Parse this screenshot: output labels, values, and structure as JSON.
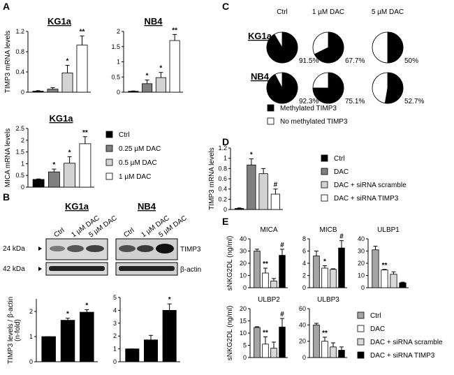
{
  "panel_labels": [
    "A",
    "B",
    "C",
    "D",
    "E"
  ],
  "legends": [
    {
      "items": [
        "Ctrl",
        "0.25 µM DAC",
        "0.5 µM DAC",
        "1 µM DAC"
      ],
      "colors": [
        "#000000",
        "#808080",
        "#d3d3d3",
        "#ffffff"
      ]
    },
    {
      "items": [
        "Methylated TIMP3",
        "No methylated TIMP3"
      ],
      "colors": [
        "#000000",
        "#ffffff"
      ]
    },
    {
      "items": [
        "Ctrl",
        "DAC",
        "DAC + siRNA scramble",
        "DAC + siRNA TIMP3"
      ],
      "colors": [
        "#000000",
        "#808080",
        "#d3d3d3",
        "#ffffff"
      ]
    },
    {
      "items": [
        "Ctrl",
        "DAC",
        "DAC + siRNA scramble",
        "DAC + siRNA TIMP3"
      ],
      "colors": [
        "#a6a6a6",
        "#ffffff",
        "#d9d9d9",
        "#000000"
      ]
    }
  ],
  "blot": {
    "titles": [
      "KG1a",
      "NB4"
    ],
    "lanes": [
      "Ctrl",
      "1 µM DAC",
      "5 µM DAC"
    ],
    "markers": [
      "24 kDa",
      "42 kDa"
    ],
    "proteins": [
      "TIMP3",
      "β-actin"
    ]
  },
  "chart_data": [
    {
      "type": "bar",
      "title": "KG1a",
      "title_underline": true,
      "ylabel": "TIMP3 mRNA levels",
      "values": [
        0.02,
        0.06,
        0.38,
        0.93
      ],
      "errors": [
        0.01,
        0.03,
        0.15,
        0.18
      ],
      "annotations": [
        null,
        null,
        "*",
        "**"
      ],
      "colors": [
        "#000000",
        "#808080",
        "#d3d3d3",
        "#ffffff"
      ],
      "ylim": [
        0,
        1.2
      ],
      "yticks": [
        0,
        0.4,
        0.8,
        1.2
      ]
    },
    {
      "type": "bar",
      "title": "NB4",
      "title_underline": true,
      "values": [
        0.03,
        0.28,
        0.48,
        1.7
      ],
      "errors": [
        0.01,
        0.12,
        0.17,
        0.2
      ],
      "annotations": [
        null,
        "*",
        "*",
        "**"
      ],
      "colors": [
        "#000000",
        "#808080",
        "#d3d3d3",
        "#ffffff"
      ],
      "ylim": [
        0,
        2
      ],
      "yticks": [
        0,
        0.5,
        1,
        1.5,
        2
      ]
    },
    {
      "type": "bar",
      "title": "KG1a",
      "title_underline": true,
      "ylabel": "MICA  mRNA levels",
      "values": [
        0.33,
        0.65,
        1.02,
        1.85
      ],
      "errors": [
        0.02,
        0.12,
        0.28,
        0.3
      ],
      "annotations": [
        null,
        "*",
        "*",
        "**"
      ],
      "colors": [
        "#000000",
        "#808080",
        "#d3d3d3",
        "#ffffff"
      ],
      "ylim": [
        0,
        2.5
      ],
      "yticks": [
        0,
        0.5,
        1,
        1.5,
        2,
        2.5
      ]
    },
    {
      "type": "bar",
      "ylabel": [
        "TIMP3 levels / β-actin",
        "(n-fold)"
      ],
      "values": [
        1,
        1.65,
        1.97
      ],
      "errors": [
        0,
        0.08,
        0.1
      ],
      "annotations": [
        null,
        "*",
        "*"
      ],
      "colors": [
        "#000000",
        "#000000",
        "#000000"
      ],
      "ylim": [
        0,
        2.5
      ],
      "yticks": [
        0,
        1,
        2
      ]
    },
    {
      "type": "bar",
      "values": [
        1,
        1.7,
        4
      ],
      "errors": [
        0,
        0.35,
        0.5
      ],
      "annotations": [
        null,
        null,
        "*"
      ],
      "colors": [
        "#000000",
        "#000000",
        "#000000"
      ],
      "ylim": [
        0,
        5
      ],
      "yticks": [
        0,
        1,
        2,
        3,
        4,
        5
      ]
    },
    {
      "type": "pie",
      "rows": [
        "KG1a",
        "NB4"
      ],
      "columns": [
        "Ctrl",
        "1 µM DAC",
        "5 µM DAC"
      ],
      "values": [
        [
          91.5,
          67.7,
          50
        ],
        [
          92.3,
          75.1,
          52.7
        ]
      ],
      "value_labels": [
        [
          "91.5%",
          "67.7%",
          "50%"
        ],
        [
          "92.3%",
          "75.1%",
          "52.7%"
        ]
      ],
      "color": "#000000"
    },
    {
      "type": "bar",
      "ylabel": "TIMP3 mRNA levels",
      "values": [
        0.02,
        0.87,
        0.7,
        0.3
      ],
      "errors": [
        0.01,
        0.12,
        0.1,
        0.1
      ],
      "annotations": [
        null,
        "*",
        null,
        "#"
      ],
      "colors": [
        "#000000",
        "#808080",
        "#d3d3d3",
        "#ffffff"
      ],
      "ylim": [
        0,
        1.2
      ],
      "yticks": [
        0,
        0.2,
        0.4,
        0.6,
        0.8,
        1,
        1.2
      ]
    },
    {
      "type": "bar",
      "title": "MICA",
      "ylabel": "sNKG2DL (ng/ml)",
      "values": [
        30,
        12,
        5.5,
        26.5
      ],
      "errors": [
        1.5,
        4,
        2,
        5
      ],
      "annotations": [
        null,
        "**",
        null,
        "#"
      ],
      "colors": [
        "#a6a6a6",
        "#ffffff",
        "#d9d9d9",
        "#000000"
      ],
      "ylim": [
        0,
        40
      ],
      "yticks": [
        0,
        10,
        20,
        30,
        40
      ]
    },
    {
      "type": "bar",
      "title": "MICB",
      "values": [
        5.2,
        3.2,
        3,
        6.5
      ],
      "errors": [
        0.8,
        0.4,
        0.1,
        1.2
      ],
      "annotations": [
        null,
        "*",
        null,
        "#"
      ],
      "colors": [
        "#a6a6a6",
        "#ffffff",
        "#d9d9d9",
        "#000000"
      ],
      "ylim": [
        0,
        8
      ],
      "yticks": [
        0,
        2,
        4,
        6,
        8
      ]
    },
    {
      "type": "bar",
      "title": "ULBP1",
      "values": [
        31,
        14.5,
        11,
        4
      ],
      "errors": [
        3,
        0.5,
        2,
        0.5
      ],
      "annotations": [
        null,
        "**",
        null,
        null
      ],
      "colors": [
        "#a6a6a6",
        "#ffffff",
        "#d9d9d9",
        "#000000"
      ],
      "ylim": [
        0,
        40
      ],
      "yticks": [
        0,
        10,
        20,
        30,
        40
      ]
    },
    {
      "type": "bar",
      "title": "ULBP2",
      "ylabel": "sNKG2DL (ng/ml)",
      "values": [
        12.3,
        5.5,
        3.8,
        12.5
      ],
      "errors": [
        0.3,
        3,
        2.5,
        3.5
      ],
      "annotations": [
        null,
        "**",
        null,
        "#"
      ],
      "colors": [
        "#a6a6a6",
        "#ffffff",
        "#d9d9d9",
        "#000000"
      ],
      "ylim": [
        0,
        20
      ],
      "yticks": [
        0,
        5,
        10,
        15,
        20
      ]
    },
    {
      "type": "bar",
      "title": "ULBP3",
      "values": [
        40,
        20,
        13,
        9
      ],
      "errors": [
        2,
        5,
        5,
        4
      ],
      "annotations": [
        null,
        "**",
        null,
        null
      ],
      "colors": [
        "#a6a6a6",
        "#ffffff",
        "#d9d9d9",
        "#000000"
      ],
      "ylim": [
        0,
        60
      ],
      "yticks": [
        0,
        20,
        40,
        60
      ]
    }
  ]
}
